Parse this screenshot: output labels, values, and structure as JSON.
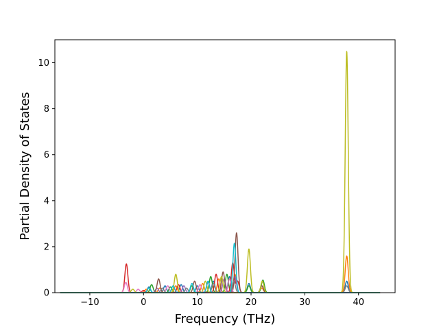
{
  "chart_data": {
    "type": "line",
    "title": "",
    "xlabel": "Frequency (THz)",
    "ylabel": "Partial Density of States",
    "xlim": [
      -16.5,
      46.8
    ],
    "ylim": [
      0,
      11
    ],
    "xticks": [
      -10,
      0,
      10,
      20,
      30,
      40
    ],
    "yticks": [
      0,
      2,
      4,
      6,
      8,
      10
    ],
    "xtick_labels": [
      "−10",
      "0",
      "10",
      "20",
      "30",
      "40"
    ],
    "ytick_labels": [
      "0",
      "2",
      "4",
      "6",
      "8",
      "10"
    ],
    "grid": false,
    "legend": "none",
    "x_range_of_series": [
      -15.5,
      44
    ],
    "series": [
      {
        "color": "#1f77b4",
        "peaks": [
          [
            1,
            0.25
          ],
          [
            4,
            0.3
          ],
          [
            7,
            0.35
          ],
          [
            10,
            0.3
          ],
          [
            13,
            0.5
          ],
          [
            16,
            0.7
          ],
          [
            19.6,
            0.4
          ],
          [
            22,
            0.3
          ],
          [
            37.8,
            0.5
          ]
        ]
      },
      {
        "color": "#ff7f0e",
        "peaks": [
          [
            0.5,
            0.15
          ],
          [
            3,
            0.2
          ],
          [
            6,
            0.3
          ],
          [
            11,
            0.4
          ],
          [
            14,
            0.6
          ],
          [
            17,
            0.8
          ],
          [
            22,
            0.2
          ],
          [
            37.8,
            1.6
          ]
        ]
      },
      {
        "color": "#2ca02c",
        "peaks": [
          [
            1.5,
            0.35
          ],
          [
            5,
            0.25
          ],
          [
            9,
            0.3
          ],
          [
            12.5,
            0.7
          ],
          [
            15.5,
            0.8
          ],
          [
            19.6,
            0.3
          ],
          [
            22.2,
            0.55
          ]
        ]
      },
      {
        "color": "#d62728",
        "peaks": [
          [
            -3.2,
            1.25
          ],
          [
            0,
            0.1
          ],
          [
            6.5,
            0.35
          ],
          [
            13.5,
            0.8
          ],
          [
            16.6,
            1.3
          ],
          [
            17.5,
            0.5
          ]
        ]
      },
      {
        "color": "#9467bd",
        "peaks": [
          [
            2.5,
            0.2
          ],
          [
            7.5,
            0.3
          ],
          [
            12,
            0.45
          ],
          [
            15,
            0.6
          ],
          [
            17,
            0.7
          ]
        ]
      },
      {
        "color": "#8c564b",
        "peaks": [
          [
            2.8,
            0.6
          ],
          [
            9.5,
            0.5
          ],
          [
            14.8,
            0.9
          ],
          [
            17.3,
            2.6
          ],
          [
            22,
            0.3
          ]
        ]
      },
      {
        "color": "#e377c2",
        "peaks": [
          [
            -3.3,
            0.45
          ],
          [
            -1,
            0.15
          ],
          [
            4.5,
            0.3
          ],
          [
            10.5,
            0.35
          ],
          [
            16,
            0.6
          ]
        ]
      },
      {
        "color": "#7f7f7f",
        "peaks": [
          [
            3.5,
            0.2
          ],
          [
            8,
            0.2
          ],
          [
            13,
            0.4
          ],
          [
            16.8,
            0.5
          ],
          [
            37.8,
            0.3
          ]
        ]
      },
      {
        "color": "#bcbd22",
        "peaks": [
          [
            -2,
            0.15
          ],
          [
            6,
            0.8
          ],
          [
            11.5,
            0.5
          ],
          [
            14.5,
            0.7
          ],
          [
            19.6,
            1.9
          ],
          [
            22.1,
            0.5
          ],
          [
            37.8,
            10.5
          ]
        ]
      },
      {
        "color": "#17becf",
        "peaks": [
          [
            1,
            0.2
          ],
          [
            5.5,
            0.3
          ],
          [
            9,
            0.4
          ],
          [
            12,
            0.5
          ],
          [
            16.9,
            2.15
          ]
        ]
      }
    ]
  }
}
